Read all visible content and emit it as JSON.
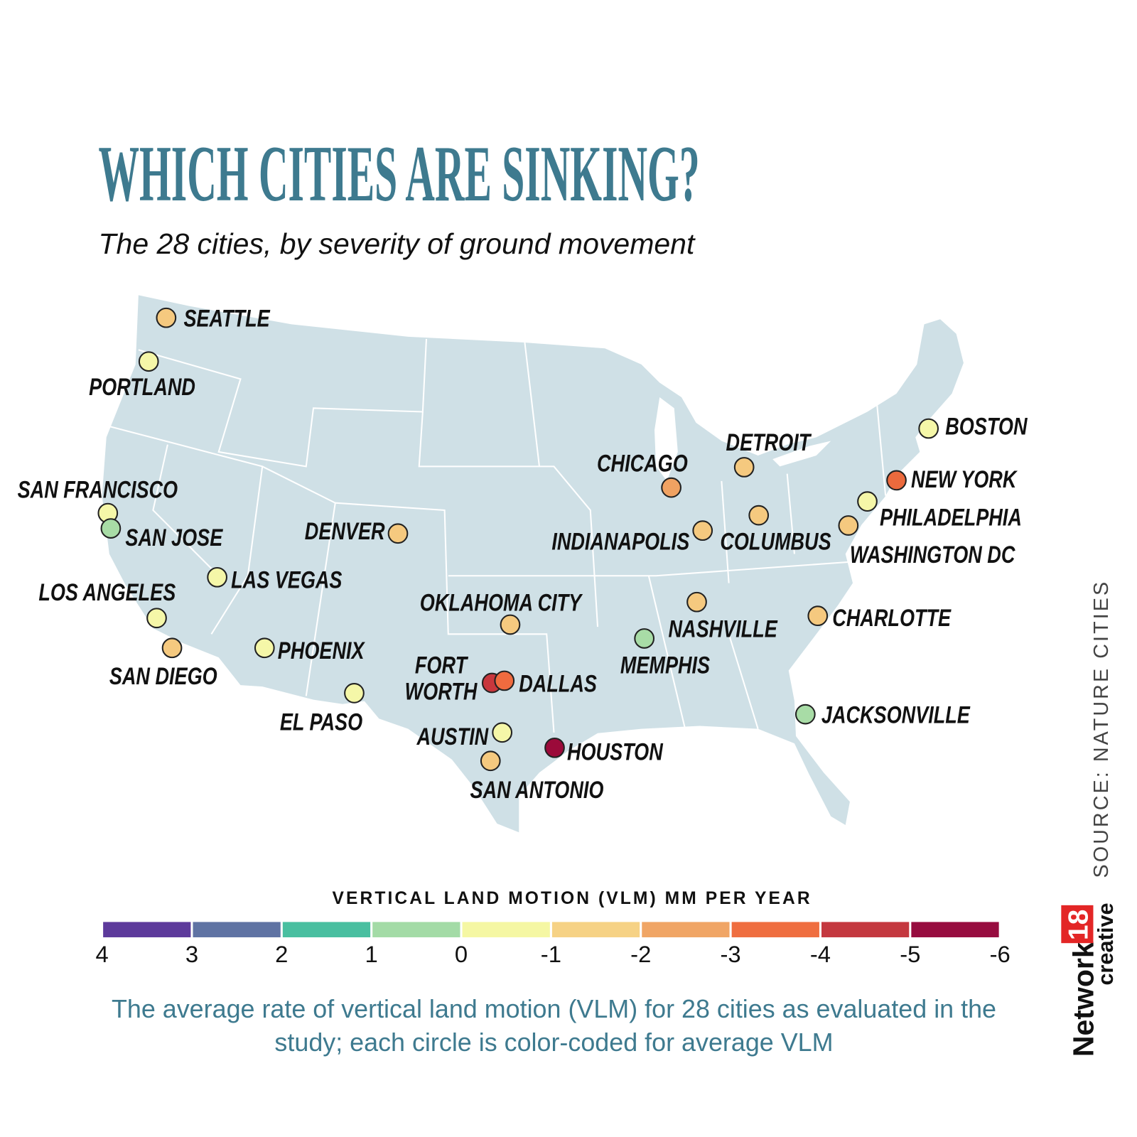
{
  "title": "WHICH CITIES ARE SINKING?",
  "subtitle": "The 28 cities, by severity of ground movement",
  "cities": [
    {
      "name": "SEATTLE",
      "color": "#f5c97f"
    },
    {
      "name": "PORTLAND",
      "color": "#f5f7a8"
    },
    {
      "name": "SAN FRANCISCO",
      "color": "#f5f7a8"
    },
    {
      "name": "SAN JOSE",
      "color": "#a8dca6"
    },
    {
      "name": "LOS ANGELES",
      "color": "#f5f7a8"
    },
    {
      "name": "SAN DIEGO",
      "color": "#f5c97f"
    },
    {
      "name": "LAS VEGAS",
      "color": "#f5f7a8"
    },
    {
      "name": "PHOENIX",
      "color": "#f5f7a8"
    },
    {
      "name": "EL PASO",
      "color": "#f5f7a8"
    },
    {
      "name": "DENVER",
      "color": "#f5c97f"
    },
    {
      "name": "OKLAHOMA CITY",
      "color": "#f5c97f"
    },
    {
      "name": "FORT WORTH",
      "color": "#c8373d"
    },
    {
      "name": "DALLAS",
      "color": "#ef6b3f"
    },
    {
      "name": "AUSTIN",
      "color": "#f5f7a8"
    },
    {
      "name": "SAN ANTONIO",
      "color": "#f5c97f"
    },
    {
      "name": "HOUSTON",
      "color": "#9b0a3a"
    },
    {
      "name": "MEMPHIS",
      "color": "#a8dca6"
    },
    {
      "name": "NASHVILLE",
      "color": "#f5c97f"
    },
    {
      "name": "CHICAGO",
      "color": "#f0a262"
    },
    {
      "name": "DETROIT",
      "color": "#f5c97f"
    },
    {
      "name": "INDIANAPOLIS",
      "color": "#f5c97f"
    },
    {
      "name": "COLUMBUS",
      "color": "#f5c97f"
    },
    {
      "name": "CHARLOTTE",
      "color": "#f5c97f"
    },
    {
      "name": "JACKSONVILLE",
      "color": "#a8dca6"
    },
    {
      "name": "WASHINGTON DC",
      "color": "#f5c97f"
    },
    {
      "name": "PHILADELPHIA",
      "color": "#f5f7a8"
    },
    {
      "name": "NEW YORK",
      "color": "#ec6a3d"
    },
    {
      "name": "BOSTON",
      "color": "#f5f7a8"
    }
  ],
  "legend": {
    "title": "VERTICAL LAND MOTION (VLM) MM PER YEAR",
    "ticks": [
      4,
      3,
      2,
      1,
      0,
      -1,
      -2,
      -3,
      -4,
      -5,
      -6
    ],
    "colors": [
      "#5d3a9b",
      "#5f73a3",
      "#49bfa0",
      "#a3dba6",
      "#f5f7a3",
      "#f6d285",
      "#f0a565",
      "#ef6e40",
      "#c4383f",
      "#970c3f"
    ]
  },
  "caption": "The average rate of vertical land motion (VLM) for 28 cities as evaluated in the study; each circle is color-coded for average VLM",
  "source": "SOURCE: NATURE CITIES",
  "brand": {
    "name": "Network",
    "number": "18",
    "tagline": "creative"
  }
}
